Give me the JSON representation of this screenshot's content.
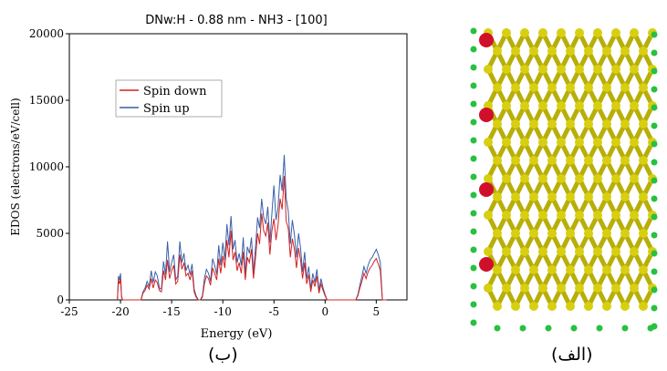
{
  "panels": {
    "left_label": "(ب)",
    "right_label": "(الف)"
  },
  "colors": {
    "spin_down": "#d42020",
    "spin_up": "#3a5fa8",
    "silicon_atom": "#d8cf10",
    "hydrogen_atom": "#28c040",
    "nitrogen_atom": "#d0102a"
  },
  "chart_data": {
    "type": "line",
    "title": "DNw:H - 0.88 nm - NH3 - [100]",
    "xlabel": "Energy (eV)",
    "ylabel": "EDOS (electrons/eV/cell)",
    "xlim": [
      -25,
      8
    ],
    "ylim": [
      0,
      20000
    ],
    "xticks": [
      -25,
      -20,
      -15,
      -10,
      -5,
      0,
      5
    ],
    "yticks": [
      0,
      5000,
      10000,
      15000,
      20000
    ],
    "grid": false,
    "legend_position": "upper-left",
    "x": [
      -20.3,
      -20.2,
      -20.1,
      -20.0,
      -19.9,
      -19.8,
      -19.7,
      -18.0,
      -17.8,
      -17.6,
      -17.4,
      -17.2,
      -17.0,
      -16.8,
      -16.6,
      -16.4,
      -16.2,
      -16.0,
      -15.8,
      -15.6,
      -15.4,
      -15.2,
      -15.0,
      -14.8,
      -14.6,
      -14.4,
      -14.2,
      -14.0,
      -13.8,
      -13.6,
      -13.4,
      -13.2,
      -13.0,
      -12.8,
      -12.6,
      -12.4,
      -12.2,
      -12.0,
      -11.8,
      -11.6,
      -11.4,
      -11.2,
      -11.0,
      -10.8,
      -10.6,
      -10.4,
      -10.2,
      -10.0,
      -9.8,
      -9.6,
      -9.4,
      -9.2,
      -9.0,
      -8.8,
      -8.6,
      -8.4,
      -8.2,
      -8.0,
      -7.8,
      -7.6,
      -7.4,
      -7.2,
      -7.0,
      -6.8,
      -6.6,
      -6.4,
      -6.2,
      -6.0,
      -5.8,
      -5.6,
      -5.4,
      -5.2,
      -5.0,
      -4.8,
      -4.6,
      -4.4,
      -4.2,
      -4.0,
      -3.8,
      -3.6,
      -3.4,
      -3.2,
      -3.0,
      -2.8,
      -2.6,
      -2.4,
      -2.2,
      -2.0,
      -1.8,
      -1.6,
      -1.4,
      -1.2,
      -1.0,
      -0.8,
      -0.6,
      -0.4,
      -0.2,
      0.0,
      0.2,
      0.4,
      2.8,
      3.0,
      3.2,
      3.4,
      3.6,
      3.8,
      4.0,
      4.2,
      4.4,
      4.6,
      4.8,
      5.0,
      5.2,
      5.4,
      5.6,
      5.8,
      6.0
    ],
    "series": [
      {
        "name": "Spin down",
        "values": [
          0,
          1500,
          1200,
          1600,
          200,
          0,
          0,
          0,
          500,
          700,
          1100,
          800,
          1600,
          900,
          1500,
          1300,
          700,
          600,
          2200,
          1500,
          3000,
          1600,
          2200,
          2600,
          1200,
          1400,
          3400,
          2300,
          2800,
          1800,
          2000,
          1500,
          2200,
          600,
          200,
          0,
          0,
          200,
          1200,
          1800,
          1600,
          1100,
          2400,
          2000,
          1500,
          3100,
          2000,
          3300,
          2400,
          4500,
          3200,
          5200,
          3000,
          3600,
          2200,
          2800,
          2000,
          3600,
          1500,
          3200,
          2800,
          3800,
          1600,
          3200,
          5000,
          4200,
          6500,
          5200,
          4800,
          5800,
          3400,
          5200,
          6100,
          4500,
          5600,
          7600,
          6800,
          9300,
          5900,
          5400,
          3200,
          4600,
          3800,
          2400,
          3900,
          3000,
          1600,
          2800,
          1200,
          1900,
          600,
          1500,
          1000,
          1800,
          500,
          1200,
          700,
          300,
          0,
          0,
          0,
          0,
          300,
          900,
          1400,
          2000,
          1600,
          2100,
          2400,
          2600,
          2900,
          3100,
          2700,
          2200,
          0,
          0,
          0
        ]
      },
      {
        "name": "Spin up",
        "values": [
          0,
          1800,
          1500,
          2000,
          300,
          0,
          0,
          0,
          600,
          900,
          1400,
          1000,
          2200,
          1300,
          2100,
          1800,
          900,
          800,
          2900,
          1900,
          4400,
          2100,
          2800,
          3400,
          1500,
          1800,
          4400,
          2800,
          3500,
          2200,
          2600,
          1900,
          2700,
          800,
          300,
          0,
          0,
          300,
          1600,
          2300,
          2000,
          1400,
          3100,
          2600,
          1900,
          4100,
          2600,
          4300,
          3000,
          5700,
          4100,
          6300,
          3800,
          4500,
          2800,
          3500,
          2600,
          4700,
          1900,
          4000,
          3500,
          4700,
          2000,
          4000,
          6200,
          5400,
          7600,
          6200,
          5700,
          7000,
          4300,
          6500,
          8600,
          6000,
          6900,
          9400,
          8200,
          10900,
          7600,
          6700,
          4200,
          6000,
          4900,
          3200,
          5000,
          3900,
          2100,
          3600,
          1600,
          2500,
          800,
          2000,
          1300,
          2300,
          700,
          1600,
          900,
          400,
          0,
          0,
          0,
          0,
          400,
          1100,
          1800,
          2500,
          2000,
          2600,
          3000,
          3200,
          3500,
          3800,
          3400,
          2800,
          0,
          0,
          0
        ]
      }
    ]
  }
}
